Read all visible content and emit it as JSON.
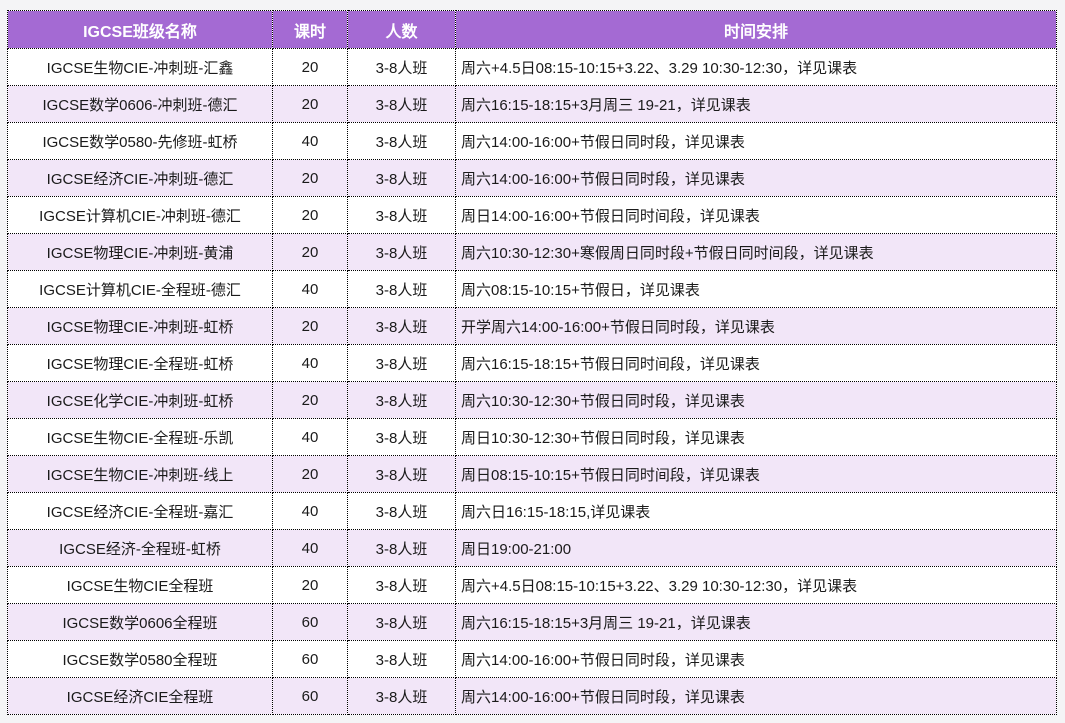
{
  "table": {
    "columns": [
      "IGCSE班级名称",
      "课时",
      "人数",
      "时间安排"
    ],
    "rows": [
      [
        "IGCSE生物CIE-冲刺班-汇鑫",
        "20",
        "3-8人班",
        "周六+4.5日08:15-10:15+3.22、3.29 10:30-12:30，详见课表"
      ],
      [
        "IGCSE数学0606-冲刺班-德汇",
        "20",
        "3-8人班",
        "周六16:15-18:15+3月周三 19-21，详见课表"
      ],
      [
        "IGCSE数学0580-先修班-虹桥",
        "40",
        "3-8人班",
        "周六14:00-16:00+节假日同时段，详见课表"
      ],
      [
        "IGCSE经济CIE-冲刺班-德汇",
        "20",
        "3-8人班",
        "周六14:00-16:00+节假日同时段，详见课表"
      ],
      [
        "IGCSE计算机CIE-冲刺班-德汇",
        "20",
        "3-8人班",
        "周日14:00-16:00+节假日同时间段，详见课表"
      ],
      [
        "IGCSE物理CIE-冲刺班-黄浦",
        "20",
        "3-8人班",
        "周六10:30-12:30+寒假周日同时段+节假日同时间段，详见课表"
      ],
      [
        "IGCSE计算机CIE-全程班-德汇",
        "40",
        "3-8人班",
        "周六08:15-10:15+节假日，详见课表"
      ],
      [
        "IGCSE物理CIE-冲刺班-虹桥",
        "20",
        "3-8人班",
        "开学周六14:00-16:00+节假日同时段，详见课表"
      ],
      [
        "IGCSE物理CIE-全程班-虹桥",
        "40",
        "3-8人班",
        "周六16:15-18:15+节假日同时间段，详见课表"
      ],
      [
        "IGCSE化学CIE-冲刺班-虹桥",
        "20",
        "3-8人班",
        "周六10:30-12:30+节假日同时段，详见课表"
      ],
      [
        "IGCSE生物CIE-全程班-乐凯",
        "40",
        "3-8人班",
        "周日10:30-12:30+节假日同时段，详见课表"
      ],
      [
        "IGCSE生物CIE-冲刺班-线上",
        "20",
        "3-8人班",
        "周日08:15-10:15+节假日同时间段，详见课表"
      ],
      [
        "IGCSE经济CIE-全程班-嘉汇",
        "40",
        "3-8人班",
        "周六日16:15-18:15,详见课表"
      ],
      [
        "IGCSE经济-全程班-虹桥",
        "40",
        "3-8人班",
        "周日19:00-21:00"
      ],
      [
        "IGCSE生物CIE全程班",
        "20",
        "3-8人班",
        "周六+4.5日08:15-10:15+3.22、3.29 10:30-12:30，详见课表"
      ],
      [
        "IGCSE数学0606全程班",
        "60",
        "3-8人班",
        "周六16:15-18:15+3月周三 19-21，详见课表"
      ],
      [
        "IGCSE数学0580全程班",
        "60",
        "3-8人班",
        "周六14:00-16:00+节假日同时段，详见课表"
      ],
      [
        "IGCSE经济CIE全程班",
        "60",
        "3-8人班",
        "周六14:00-16:00+节假日同时段，详见课表"
      ]
    ],
    "colors": {
      "header_bg": "#a46ad3",
      "header_text": "#ffffff",
      "row_alt_bg": "#f2e6f8",
      "row_bg": "#ffffff",
      "border": "#000000",
      "page_bg": "#f4f4f6"
    }
  }
}
